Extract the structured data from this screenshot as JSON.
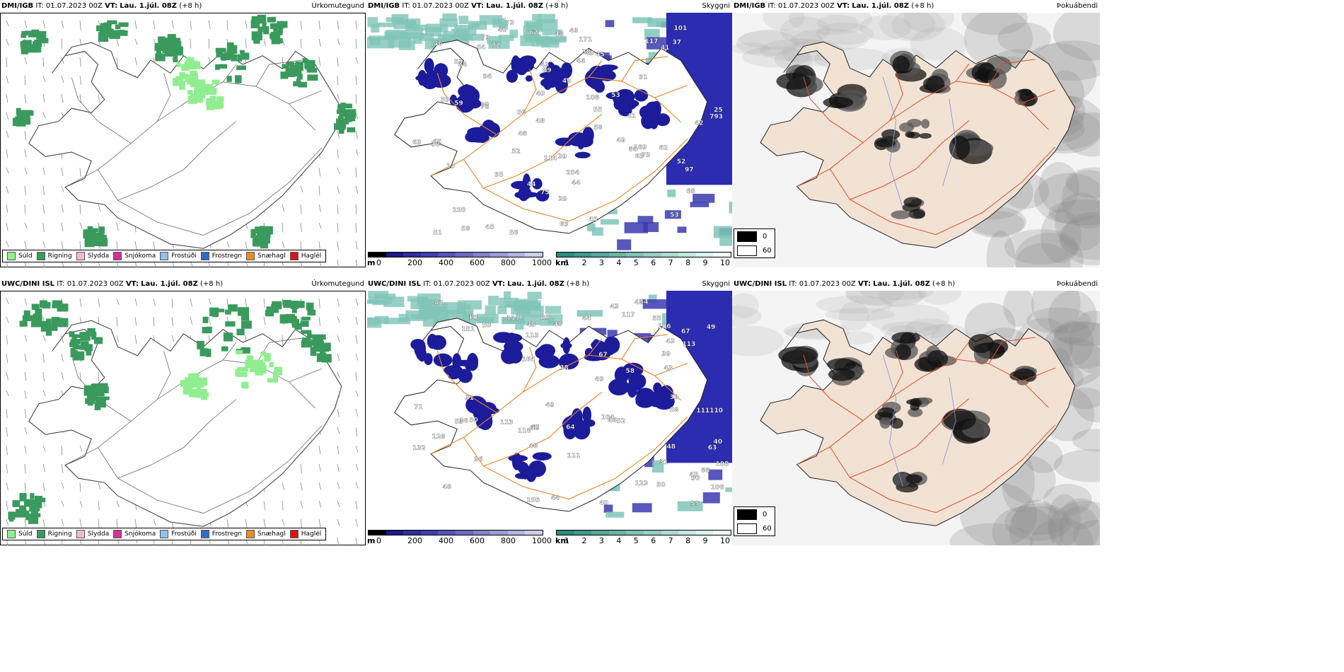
{
  "rows": [
    {
      "model": "DMI/IGB",
      "it": "IT: 01.07.2023 00Z",
      "vt_label": "VT:",
      "vt": "Lau. 1.júl. 08Z",
      "lead": "(+8 h)",
      "precip_title": "Úrkomutegund",
      "vis_title": "Skyggni",
      "fog_title": "Þokuábendi",
      "vis_labels": [
        "63",
        "53",
        "40",
        "117",
        "39",
        "45",
        "56",
        "58",
        "51",
        "44",
        "43",
        "44",
        "58",
        "55",
        "59",
        "39",
        "43",
        "39",
        "38",
        "37",
        "38",
        "68",
        "73",
        "84",
        "97",
        "91",
        "120",
        "108",
        "45",
        "48",
        "52",
        "73",
        "101",
        "42",
        "49",
        "53",
        "52",
        "46",
        "48",
        "54",
        "69",
        "75",
        "94",
        "72",
        "204",
        "793",
        "65",
        "56",
        "49",
        "62",
        "40",
        "46",
        "63",
        "62",
        "41",
        "43",
        "13",
        "25",
        "82",
        "49",
        "88",
        "169",
        "89",
        "171",
        "114",
        "95",
        "53",
        "41",
        "72",
        "73",
        "48"
      ]
    },
    {
      "model": "UWC/DINI ISL",
      "it": "IT: 01.07.2023 00Z",
      "vt_label": "VT:",
      "vt": "Lau. 1.júl. 08Z",
      "lead": "(+8 h)",
      "precip_title": "Úrkomutegund",
      "vis_title": "Skyggni",
      "fog_title": "Þokuábendi",
      "vis_labels": [
        "132",
        "49",
        "39",
        "31",
        "56",
        "40",
        "31",
        "43",
        "44",
        "45",
        "55",
        "63",
        "71",
        "117",
        "44",
        "42",
        "43",
        "48",
        "58",
        "39",
        "106",
        "104",
        "67",
        "55",
        "151",
        "111",
        "113",
        "111110",
        "123",
        "45",
        "50",
        "43",
        "58",
        "50",
        "48",
        "46",
        "53",
        "128",
        "113",
        "106",
        "117",
        "49",
        "48",
        "49",
        "64",
        "96",
        "89",
        "90",
        "108",
        "82",
        "88",
        "164",
        "113",
        "10",
        "118",
        "105",
        "52",
        "67",
        "62",
        "48",
        "50",
        "42",
        "44",
        "38",
        "40"
      ]
    }
  ],
  "precip_legend": [
    "Súld",
    "Rigning",
    "Slydda",
    "Snjókoma",
    "Frostúði",
    "Frostregn",
    "Snæhagl",
    "Haglél"
  ],
  "precip_colors": [
    "#90ee90",
    "#3a9a5e",
    "#f4b6d6",
    "#cc3399",
    "#8ec0f0",
    "#2f6bc4",
    "#ee8a22",
    "#dd1111"
  ],
  "height_bar": {
    "unit": "m",
    "ticks": [
      "0",
      "200",
      "400",
      "600",
      "800",
      "1000"
    ],
    "colors": [
      "#000000",
      "#1a1a8a",
      "#2e2ea2",
      "#3e3eb4",
      "#5454bc",
      "#6a6ac4",
      "#8282cc",
      "#9b9bd6",
      "#b4b4e0",
      "#cdcdea"
    ]
  },
  "dist_bar": {
    "unit": "km",
    "ticks": [
      "1",
      "2",
      "3",
      "4",
      "5",
      "6",
      "7",
      "8",
      "9",
      "10"
    ],
    "colors": [
      "#2a8c7e",
      "#3e998c",
      "#54a69a",
      "#6ab3a8",
      "#80c0b6",
      "#96cdc4",
      "#acdad2",
      "#c2e6e0",
      "#d8f2ee",
      "#eefaf8"
    ]
  },
  "fog_legend": {
    "high": "0",
    "low": "60"
  }
}
